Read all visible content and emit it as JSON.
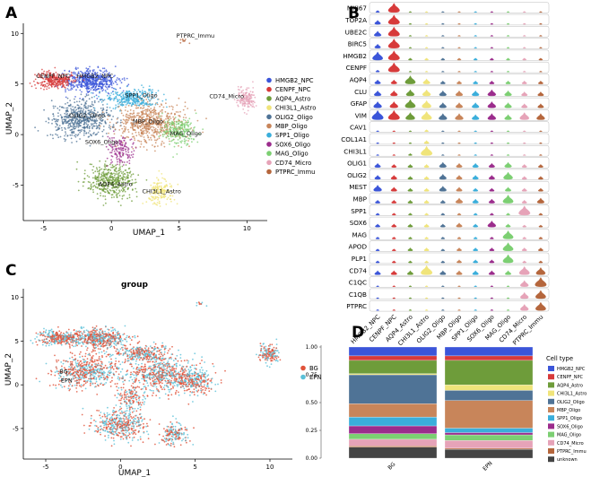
{
  "panels": {
    "a": "A",
    "b": "B",
    "c": "C",
    "d": "D"
  },
  "colors": {
    "HMGB2_NPC": "#3b55d9",
    "CENPF_NPC": "#d73a3a",
    "AQP4_Astro": "#6e9c3a",
    "CHI3L1_Astro": "#f0e47a",
    "OLIG2_Oligo": "#4f7396",
    "MBP_Oligo": "#c8855a",
    "SPP1_Oligo": "#3aaedb",
    "SOX6_Oligo": "#9b2c8c",
    "MAG_Oligo": "#7ccf72",
    "CD74_Micro": "#e6a3b8",
    "PTPRC_Immu": "#b5663c",
    "unknown": "#444444",
    "BG": "#e0533a",
    "EPN": "#5bc0d8"
  },
  "chart_data": [
    {
      "id": "A",
      "type": "scatter",
      "title": "",
      "xlabel": "UMAP_1",
      "ylabel": "UMAP_2",
      "xlim": [
        -6.5,
        11.5
      ],
      "ylim": [
        -8.5,
        11
      ],
      "xticks": [
        -5,
        0,
        5,
        10
      ],
      "yticks": [
        -5,
        0,
        5,
        10
      ],
      "legend": [
        "HMGB2_NPC",
        "CENPF_NPC",
        "AQP4_Astro",
        "CHI3L1_Astro",
        "OLIG2_Oligo",
        "MBP_Oligo",
        "SPP1_Oligo",
        "SOX6_Oligo",
        "MAG_Oligo",
        "CD74_Micro",
        "PTPRC_Immu"
      ],
      "clusters": [
        {
          "name": "HMGB2_NPC",
          "cx": -1.5,
          "cy": 5.3,
          "sx": 1.3,
          "sy": 0.75,
          "n": 520
        },
        {
          "name": "CENPF_NPC",
          "cx": -4.2,
          "cy": 5.4,
          "sx": 0.9,
          "sy": 0.55,
          "n": 280
        },
        {
          "name": "AQP4_Astro",
          "cx": 0,
          "cy": -4.6,
          "sx": 1.2,
          "sy": 1.1,
          "n": 420
        },
        {
          "name": "CHI3L1_Astro",
          "cx": 3.6,
          "cy": -5.6,
          "sx": 0.65,
          "sy": 0.8,
          "n": 170
        },
        {
          "name": "OLIG2_Oligo",
          "cx": -2.3,
          "cy": 1.5,
          "sx": 1.5,
          "sy": 1.1,
          "n": 560
        },
        {
          "name": "MBP_Oligo",
          "cx": 2.9,
          "cy": 1.2,
          "sx": 1.7,
          "sy": 1.3,
          "n": 620
        },
        {
          "name": "SPP1_Oligo",
          "cx": 1.5,
          "cy": 3.6,
          "sx": 1.3,
          "sy": 0.6,
          "n": 300
        },
        {
          "name": "SOX6_Oligo",
          "cx": 0.6,
          "cy": -1.5,
          "sx": 0.6,
          "sy": 0.9,
          "n": 140
        },
        {
          "name": "MAG_Oligo",
          "cx": 5.0,
          "cy": 0.3,
          "sx": 0.8,
          "sy": 0.9,
          "n": 230
        },
        {
          "name": "CD74_Micro",
          "cx": 9.9,
          "cy": 3.6,
          "sx": 0.45,
          "sy": 0.7,
          "n": 160
        },
        {
          "name": "PTPRC_Immu",
          "cx": 5.2,
          "cy": 9.3,
          "sx": 0.25,
          "sy": 0.15,
          "n": 10
        }
      ],
      "labels": [
        {
          "text": "PTPRC_Immu",
          "x": 6.2,
          "y": 9.6
        },
        {
          "text": "CENPF_NPC",
          "x": -4.3,
          "y": 5.6
        },
        {
          "text": "HMGB2_NPC",
          "x": -1.2,
          "y": 5.6
        },
        {
          "text": "CD74_Micro",
          "x": 8.5,
          "y": 3.6
        },
        {
          "text": "SPP1_Oligo",
          "x": 2.2,
          "y": 3.7
        },
        {
          "text": "OLIG2_Oligo",
          "x": -1.8,
          "y": 1.7
        },
        {
          "text": "MBP_Oligo",
          "x": 2.7,
          "y": 1.1
        },
        {
          "text": "MAG_Oligo",
          "x": 5.5,
          "y": -0.1
        },
        {
          "text": "SOX6_Oligo",
          "x": -0.7,
          "y": -0.9
        },
        {
          "text": "AQP4_Astro",
          "x": 0.3,
          "y": -5.1
        },
        {
          "text": "CHI3L1_Astro",
          "x": 3.7,
          "y": -5.8
        }
      ]
    },
    {
      "id": "B",
      "type": "violin",
      "title": "",
      "genes": [
        "MKI67",
        "TOP2A",
        "UBE2C",
        "BIRC5",
        "HMGB2",
        "CENPF",
        "AQP4",
        "CLU",
        "GFAP",
        "VIM",
        "CAV1",
        "COL1A1",
        "CHI3L1",
        "OLIG1",
        "OLIG2",
        "MEST",
        "MBP",
        "SPP1",
        "SOX6",
        "MAG",
        "APOD",
        "PLP1",
        "CD74",
        "C1QC",
        "C1QB",
        "PTPRC"
      ],
      "categories": [
        "HMGB2_NPC",
        "CENPF_NPC",
        "AQP4_Astro",
        "CHI3L1_Astro",
        "OLIG2_Oligo",
        "MBP_Oligo",
        "SPP1_Oligo",
        "SOX6_Oligo",
        "MAG_Oligo",
        "CD74_Micro",
        "PTPRC_Immu"
      ],
      "expression": [
        [
          2,
          9,
          1,
          1,
          1,
          1,
          1,
          1,
          1,
          1,
          1
        ],
        [
          4,
          9,
          1,
          1,
          1,
          1,
          1,
          1,
          1,
          1,
          1
        ],
        [
          5,
          9,
          1,
          1,
          1,
          1,
          1,
          1,
          1,
          1,
          1
        ],
        [
          4,
          9,
          1,
          1,
          1,
          1,
          1,
          1,
          1,
          1,
          1
        ],
        [
          8,
          9,
          2,
          2,
          2,
          2,
          2,
          2,
          2,
          2,
          2
        ],
        [
          2,
          9,
          1,
          1,
          1,
          1,
          1,
          1,
          1,
          1,
          1
        ],
        [
          4,
          4,
          8,
          5,
          3,
          3,
          3,
          3,
          3,
          3,
          3
        ],
        [
          5,
          5,
          6,
          6,
          5,
          5,
          5,
          6,
          5,
          4,
          4
        ],
        [
          6,
          6,
          8,
          7,
          5,
          5,
          5,
          6,
          5,
          4,
          4
        ],
        [
          9,
          9,
          7,
          8,
          6,
          6,
          5,
          6,
          5,
          7,
          6
        ],
        [
          1,
          1,
          1,
          2,
          1,
          1,
          1,
          1,
          1,
          1,
          1
        ],
        [
          1,
          1,
          1,
          3,
          1,
          1,
          1,
          1,
          1,
          1,
          1
        ],
        [
          1,
          1,
          2,
          9,
          1,
          1,
          1,
          1,
          1,
          1,
          1
        ],
        [
          4,
          3,
          3,
          3,
          5,
          4,
          4,
          4,
          5,
          3,
          3
        ],
        [
          4,
          4,
          3,
          3,
          5,
          4,
          4,
          4,
          7,
          3,
          3
        ],
        [
          6,
          4,
          3,
          3,
          5,
          4,
          3,
          3,
          4,
          3,
          3
        ],
        [
          3,
          3,
          3,
          3,
          3,
          5,
          4,
          4,
          8,
          3,
          5
        ],
        [
          2,
          2,
          2,
          2,
          2,
          2,
          2,
          2,
          2,
          9,
          2
        ],
        [
          3,
          3,
          3,
          3,
          3,
          4,
          3,
          6,
          3,
          2,
          2
        ],
        [
          2,
          2,
          2,
          2,
          2,
          2,
          2,
          2,
          8,
          2,
          2
        ],
        [
          2,
          2,
          3,
          3,
          2,
          3,
          3,
          3,
          8,
          3,
          3
        ],
        [
          2,
          2,
          2,
          2,
          2,
          3,
          3,
          3,
          8,
          2,
          2
        ],
        [
          4,
          4,
          4,
          9,
          4,
          4,
          4,
          4,
          4,
          8,
          7
        ],
        [
          1,
          1,
          1,
          1,
          1,
          1,
          1,
          1,
          1,
          6,
          9
        ],
        [
          1,
          1,
          1,
          1,
          1,
          1,
          1,
          1,
          1,
          6,
          8
        ],
        [
          1,
          1,
          1,
          1,
          1,
          1,
          1,
          1,
          1,
          6,
          8
        ]
      ]
    },
    {
      "id": "C",
      "type": "scatter",
      "title": "group",
      "xlabel": "UMAP_1",
      "ylabel": "UMAP_2",
      "xlim": [
        -6.5,
        11.5
      ],
      "ylim": [
        -8.5,
        11
      ],
      "xticks": [
        -5,
        0,
        5,
        10
      ],
      "yticks": [
        -5,
        0,
        5,
        10
      ],
      "legend": [
        "BG",
        "EPN"
      ],
      "labels": [
        {
          "text": "BG",
          "x": -3.8,
          "y": 1.3
        },
        {
          "text": "EPN",
          "x": -3.6,
          "y": 0.3
        }
      ]
    },
    {
      "id": "D",
      "type": "bar",
      "stacked": true,
      "categories": [
        "BG",
        "EPN"
      ],
      "yticks": [
        "0.00",
        "0.25",
        "0.50",
        "0.75",
        "1.00"
      ],
      "legend_title": "Cell type",
      "legend": [
        "HMGB2_NPC",
        "CENPF_NPC",
        "AQP4_Astro",
        "CHI3L1_Astro",
        "OLIG2_Oligo",
        "MBP_Oligo",
        "SPP1_Oligo",
        "SOX6_Oligo",
        "MAG_Oligo",
        "CD74_Micro",
        "PTPRC_Immu",
        "unknown"
      ],
      "series": [
        {
          "name": "HMGB2_NPC",
          "values": [
            0.08,
            0.08
          ]
        },
        {
          "name": "CENPF_NPC",
          "values": [
            0.04,
            0.04
          ]
        },
        {
          "name": "AQP4_Astro",
          "values": [
            0.12,
            0.22
          ]
        },
        {
          "name": "CHI3L1_Astro",
          "values": [
            0.01,
            0.05
          ]
        },
        {
          "name": "OLIG2_Oligo",
          "values": [
            0.26,
            0.09
          ]
        },
        {
          "name": "MBP_Oligo",
          "values": [
            0.12,
            0.25
          ]
        },
        {
          "name": "SPP1_Oligo",
          "values": [
            0.08,
            0.04
          ]
        },
        {
          "name": "SOX6_Oligo",
          "values": [
            0.07,
            0.02
          ]
        },
        {
          "name": "MAG_Oligo",
          "values": [
            0.05,
            0.05
          ]
        },
        {
          "name": "CD74_Micro",
          "values": [
            0.06,
            0.07
          ]
        },
        {
          "name": "PTPRC_Immu",
          "values": [
            0.01,
            0.01
          ]
        },
        {
          "name": "unknown",
          "values": [
            0.1,
            0.08
          ]
        }
      ]
    }
  ]
}
